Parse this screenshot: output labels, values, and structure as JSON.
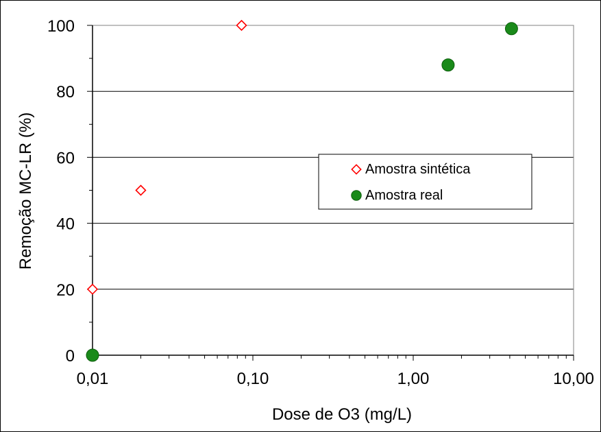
{
  "chart_data": {
    "type": "scatter",
    "title": "",
    "xlabel": "Dose de O3 (mg/L)",
    "ylabel": "Remoção MC-LR (%)",
    "x_scale": "log",
    "xlim": [
      0.01,
      10
    ],
    "ylim": [
      0,
      100
    ],
    "x_ticks": [
      0.01,
      0.1,
      1,
      10
    ],
    "x_tick_labels": [
      "0,01",
      "0,10",
      "1,00",
      "10,00"
    ],
    "y_ticks": [
      0,
      20,
      40,
      60,
      80,
      100
    ],
    "y_tick_labels": [
      "0",
      "20",
      "40",
      "60",
      "80",
      "100"
    ],
    "grid": "horizontal",
    "legend_position": "right",
    "series": [
      {
        "name": "Amostra sintética",
        "marker": "open-diamond",
        "color": "#ff0000",
        "x": [
          0.01,
          0.02,
          0.085
        ],
        "y": [
          20,
          50,
          100
        ]
      },
      {
        "name": "Amostra real",
        "marker": "filled-circle",
        "color": "#1a8a1a",
        "x": [
          0.01,
          1.65,
          4.1
        ],
        "y": [
          0,
          88,
          99
        ]
      }
    ]
  }
}
